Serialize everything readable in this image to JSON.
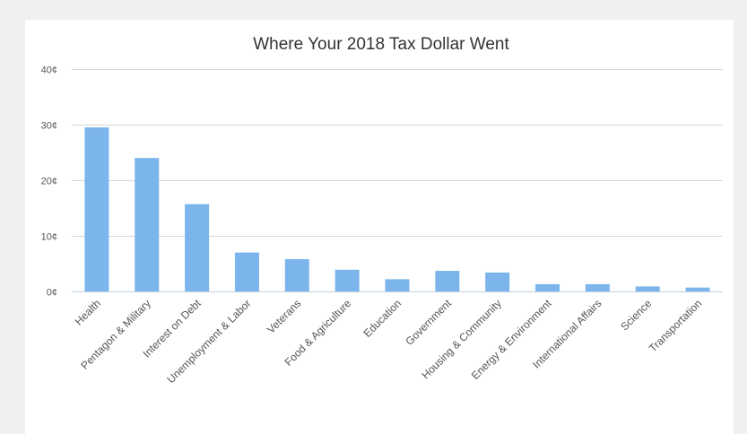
{
  "chart_data": {
    "type": "bar",
    "title": "Where Your 2018 Tax Dollar Went",
    "xlabel": "",
    "ylabel": "",
    "unit": "¢",
    "ylim": [
      0,
      40
    ],
    "yticks": [
      0,
      10,
      20,
      30,
      40
    ],
    "ytick_labels": [
      "0¢",
      "10¢",
      "20¢",
      "30¢",
      "40¢"
    ],
    "grid": true,
    "legend": false,
    "bar_color": "#7cb5ec",
    "categories": [
      "Health",
      "Pentagon & Military",
      "Interest on Debt",
      "Unemployment & Labor",
      "Veterans",
      "Food & Agriculture",
      "Education",
      "Government",
      "Housing & Community",
      "Energy & Environment",
      "International Affairs",
      "Science",
      "Transportation"
    ],
    "values": [
      29.5,
      24.0,
      15.7,
      7.0,
      5.8,
      3.9,
      2.2,
      3.7,
      3.4,
      1.3,
      1.3,
      0.9,
      0.7
    ]
  }
}
